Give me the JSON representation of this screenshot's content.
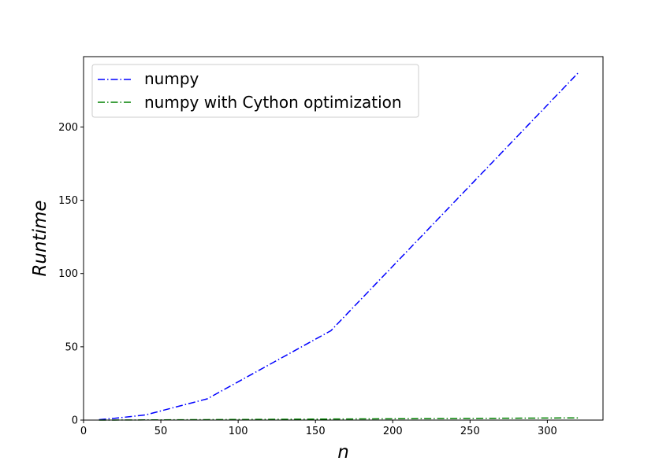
{
  "chart_data": {
    "type": "line",
    "xlabel": "n",
    "ylabel": "Runtime",
    "xlim": [
      0,
      336
    ],
    "ylim": [
      0,
      248
    ],
    "xticks": [
      0,
      50,
      100,
      150,
      200,
      250,
      300
    ],
    "yticks": [
      0,
      50,
      100,
      150,
      200
    ],
    "grid": false,
    "legend_position": "top-left",
    "series": [
      {
        "name": "numpy",
        "color": "#0000ff",
        "line_style": "dash-dot",
        "x": [
          10,
          20,
          40,
          80,
          160,
          320
        ],
        "y": [
          0.3,
          1.2,
          3.5,
          14.5,
          61,
          237
        ]
      },
      {
        "name": "numpy with Cython optimization",
        "color": "#008000",
        "line_style": "dash-dot",
        "x": [
          10,
          20,
          40,
          80,
          160,
          320
        ],
        "y": [
          0.01,
          0.03,
          0.1,
          0.3,
          0.7,
          1.5
        ]
      }
    ]
  }
}
